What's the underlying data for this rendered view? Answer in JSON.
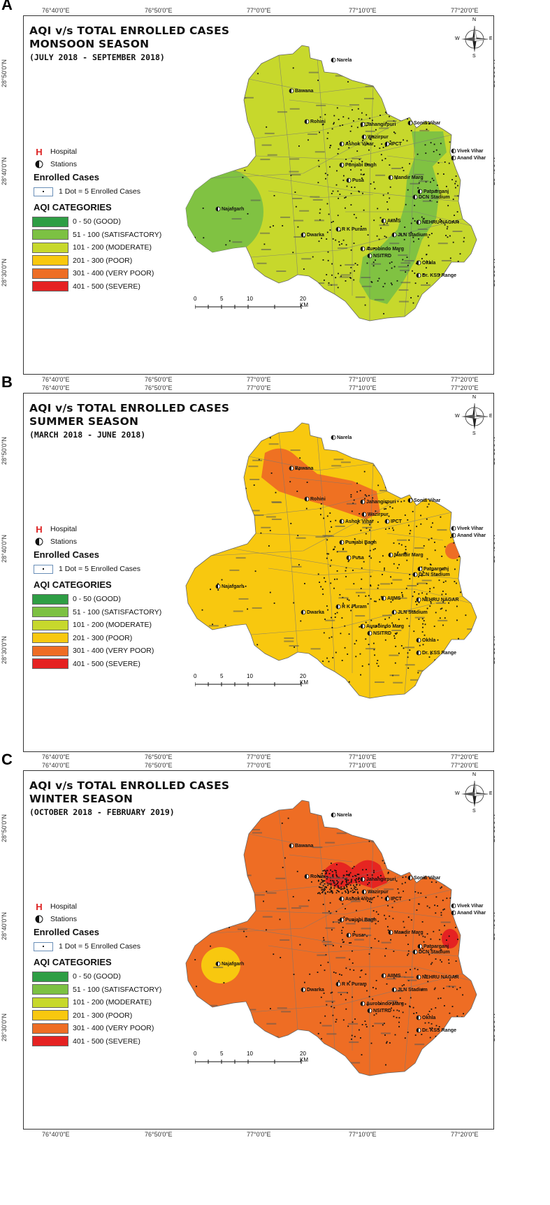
{
  "lon_ticks": [
    "76°40'0\"E",
    "76°50'0\"E",
    "77°0'0\"E",
    "77°10'0\"E",
    "77°20'0\"E"
  ],
  "lat_ticks": [
    "28°50'0\"N",
    "28°40'0\"N",
    "28°30'0\"N"
  ],
  "legend": {
    "hospital_symbol": "H",
    "hospital_label": "Hospital",
    "stations_label": "Stations",
    "enrolled_heading": "Enrolled Cases",
    "dot_label": "1 Dot = 5 Enrolled Cases",
    "aqi_heading": "AQI CATEGORIES",
    "categories": [
      {
        "label": "0 - 50 (GOOD)",
        "color": "#2e9e44"
      },
      {
        "label": "51 - 100 (SATISFACTORY)",
        "color": "#7cc143"
      },
      {
        "label": "101 - 200 (MODERATE)",
        "color": "#c7d82c"
      },
      {
        "label": "201 - 300 (POOR)",
        "color": "#f8c80f"
      },
      {
        "label": "301 - 400 (VERY POOR)",
        "color": "#ee6d24"
      },
      {
        "label": "401 - 500 (SEVERE)",
        "color": "#e52222"
      }
    ]
  },
  "scale": {
    "labels": [
      "0",
      "5",
      "10",
      "20 KM"
    ]
  },
  "compass": {
    "n": "N",
    "s": "S",
    "e": "E",
    "w": "W"
  },
  "places": [
    "Narela",
    "Bawana",
    "Rohini",
    "Jahangirpuri",
    "Wazirpur",
    "Ashok Vihar",
    "Sonia Vihar",
    "IPCT",
    "Punjabi Bagh",
    "Pusa",
    "Mandir Marg",
    "Vivek Vihar",
    "Anand Vihar",
    "Patparganj",
    "DCN Stadium",
    "Najafgarh",
    "Dwarka",
    "R K Puram",
    "JLN Stadium",
    "AIIMS",
    "NEHRU NAGAR",
    "NSITRD",
    "Aurobindo Marg",
    "Okhla",
    "Dr. KSS Range"
  ],
  "panels": [
    {
      "letter": "A",
      "title_line1": "AQI v/s TOTAL ENROLLED CASES",
      "title_line2": "MONSOON SEASON",
      "period": "(JULY 2018 - SEPTEMBER 2018)",
      "base_color": "#c7d82c",
      "overlay_color": "#7cc143",
      "overlay2_color": "#7cc143"
    },
    {
      "letter": "B",
      "title_line1": "AQI v/s TOTAL ENROLLED CASES",
      "title_line2": "SUMMER SEASON",
      "period": "(MARCH 2018 - JUNE 2018)",
      "base_color": "#f8c80f",
      "overlay_color": "#ee6d24",
      "overlay2_color": "#ee6d24"
    },
    {
      "letter": "C",
      "title_line1": "AQI v/s TOTAL ENROLLED CASES",
      "title_line2": "WINTER SEASON",
      "period": "(OCTOBER 2018 - FEBRUARY 2019)",
      "base_color": "#ee6d24",
      "overlay_color": "#e52222",
      "overlay2_color": "#f8c80f"
    }
  ]
}
